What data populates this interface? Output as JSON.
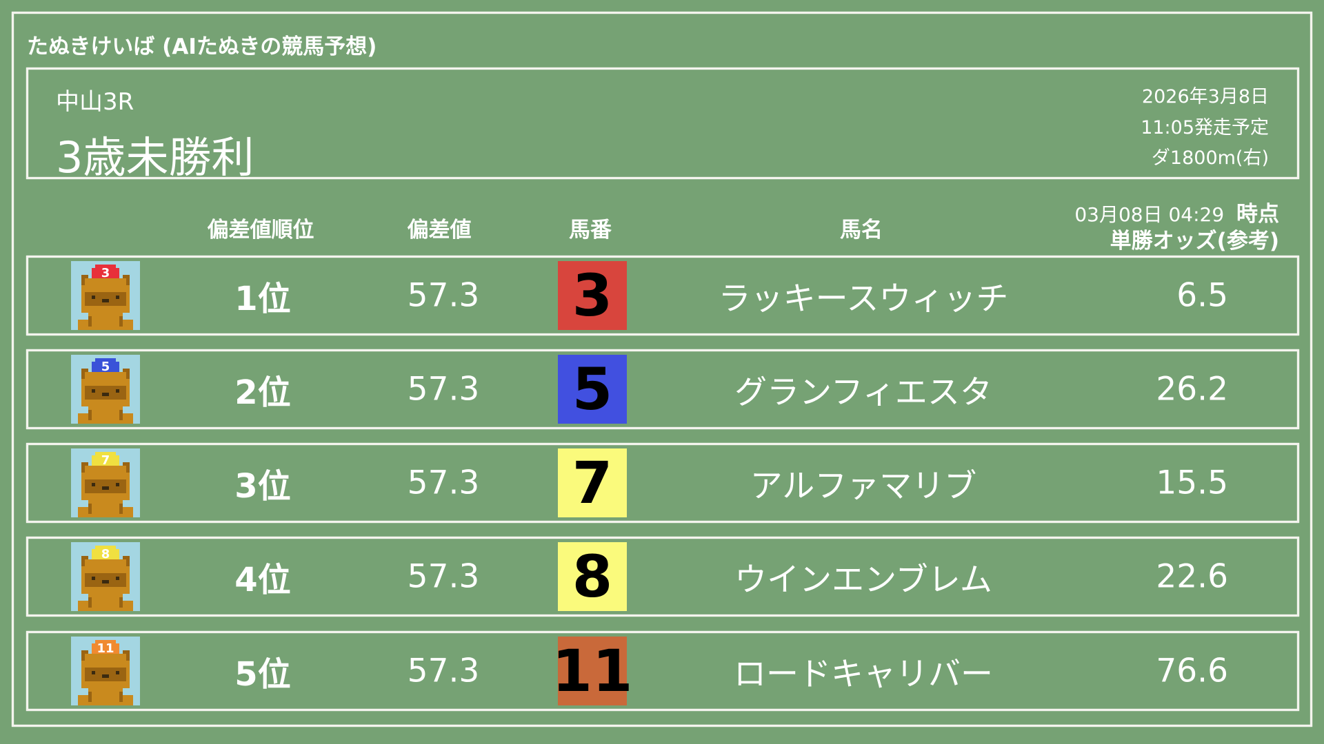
{
  "app_title": "たぬきけいば (AIたぬきの競馬予想)",
  "race": {
    "venue_round": "中山3R",
    "name": "3歳未勝利",
    "date": "2026年3月8日",
    "post_time": "11:05発走予定",
    "course": "ダ1800m(右)"
  },
  "columns": {
    "rank": "偏差値順位",
    "deviation": "偏差値",
    "number": "馬番",
    "horse_name": "馬名",
    "odds_timestamp": "03月08日 04:29",
    "odds_timestamp_suffix": "時点",
    "odds": "単勝オッズ(参考)"
  },
  "rows": [
    {
      "rank": "1位",
      "deviation": "57.3",
      "number": "3",
      "name": "ラッキースウィッチ",
      "odds": "6.5",
      "frame_color": "#d8453d",
      "cap_color": "#e8303a",
      "cap_text_color": "#ffffff"
    },
    {
      "rank": "2位",
      "deviation": "57.3",
      "number": "5",
      "name": "グランフィエスタ",
      "odds": "26.2",
      "frame_color": "#4150e0",
      "cap_color": "#3a52d8",
      "cap_text_color": "#ffffff"
    },
    {
      "rank": "3位",
      "deviation": "57.3",
      "number": "7",
      "name": "アルファマリブ",
      "odds": "15.5",
      "frame_color": "#fafa7c",
      "cap_color": "#f0e040",
      "cap_text_color": "#ffffff"
    },
    {
      "rank": "4位",
      "deviation": "57.3",
      "number": "8",
      "name": "ウインエンブレム",
      "odds": "22.6",
      "frame_color": "#fafa7c",
      "cap_color": "#f0e040",
      "cap_text_color": "#ffffff"
    },
    {
      "rank": "5位",
      "deviation": "57.3",
      "number": "11",
      "name": "ロードキャリバー",
      "odds": "76.6",
      "frame_color": "#c9693a",
      "cap_color": "#f08a30",
      "cap_text_color": "#ffffff"
    }
  ],
  "icon": "tanuki-jockey-icon"
}
